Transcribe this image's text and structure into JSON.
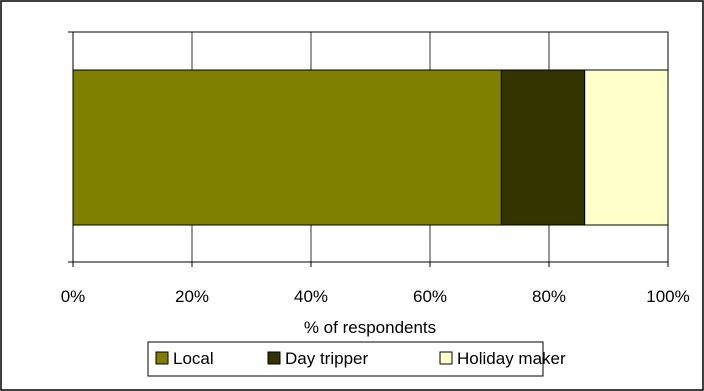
{
  "chart_data": {
    "type": "bar",
    "orientation": "horizontal",
    "stacked": true,
    "categories": [
      ""
    ],
    "series": [
      {
        "name": "Local",
        "values": [
          72
        ],
        "color": "#808000"
      },
      {
        "name": "Day tripper",
        "values": [
          14
        ],
        "color": "#333300"
      },
      {
        "name": "Holiday maker",
        "values": [
          14
        ],
        "color": "#FFFFCC"
      }
    ],
    "xlabel": "% of respondents",
    "ylabel": "",
    "xlim": [
      0,
      100
    ],
    "xticks": [
      "0%",
      "20%",
      "40%",
      "60%",
      "80%",
      "100%"
    ],
    "grid": "vertical",
    "legend_position": "bottom"
  }
}
